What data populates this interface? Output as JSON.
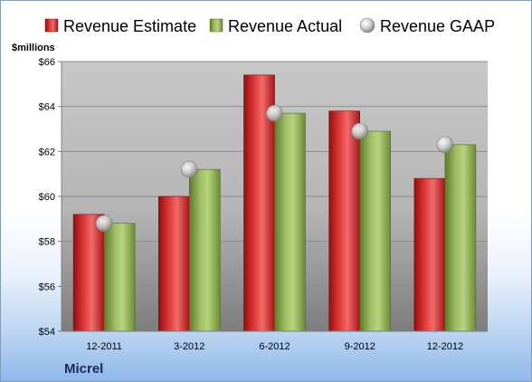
{
  "chart_data": {
    "type": "bar",
    "title": "",
    "ylabel": "$millions",
    "company": "Micrel",
    "categories": [
      "12-2011",
      "3-2012",
      "6-2012",
      "9-2012",
      "12-2012"
    ],
    "ylim": [
      54,
      66
    ],
    "yticks": [
      54,
      56,
      58,
      60,
      62,
      64,
      66
    ],
    "ytick_labels": [
      "$54",
      "$56",
      "$58",
      "$60",
      "$62",
      "$64",
      "$66"
    ],
    "grid": true,
    "legend_position": "top",
    "series": [
      {
        "name": "Revenue Estimate",
        "kind": "bar",
        "color": "#d42a2a",
        "values": [
          59.2,
          60.0,
          65.4,
          63.8,
          60.8
        ]
      },
      {
        "name": "Revenue Actual",
        "kind": "bar",
        "color": "#8fae55",
        "values": [
          58.8,
          61.2,
          63.7,
          62.9,
          62.3
        ]
      },
      {
        "name": "Revenue GAAP",
        "kind": "marker",
        "color": "#bfbfbf",
        "values": [
          58.8,
          61.2,
          63.7,
          62.9,
          62.3
        ]
      }
    ]
  }
}
